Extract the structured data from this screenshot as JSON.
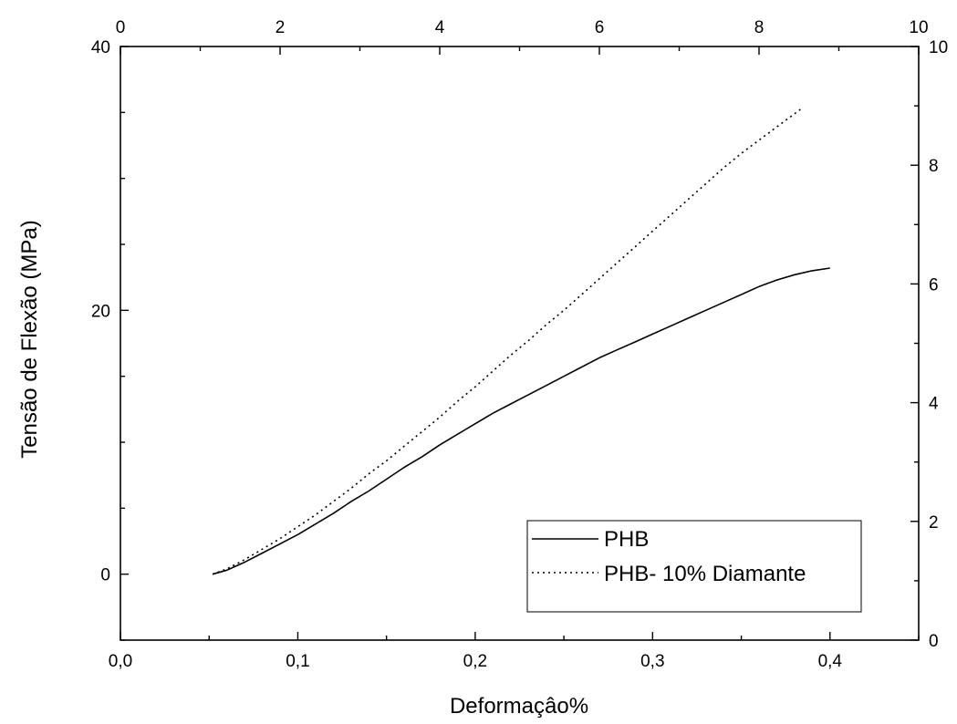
{
  "chart_data": {
    "type": "line",
    "xlabel": "Deformaçâo%",
    "ylabel": "Tensão de Flexão (MPa)",
    "x_ticks": [
      "0,0",
      "0,1",
      "0,2",
      "0,3",
      "0,4"
    ],
    "y_ticks": [
      "0",
      "20",
      "40"
    ],
    "top_ticks": [
      "0",
      "2",
      "4",
      "6",
      "8",
      "10"
    ],
    "right_ticks": [
      "0",
      "2",
      "4",
      "6",
      "8",
      "10"
    ],
    "xlim": [
      0,
      0.45
    ],
    "ylim": [
      -5,
      40
    ],
    "top_xlim": [
      0,
      10
    ],
    "right_ylim": [
      0,
      10
    ],
    "grid": false,
    "legend_position": "bottom-right",
    "series": [
      {
        "name": "PHB",
        "style": "solid",
        "x": [
          0.052,
          0.06,
          0.07,
          0.08,
          0.09,
          0.1,
          0.11,
          0.12,
          0.13,
          0.14,
          0.15,
          0.16,
          0.17,
          0.18,
          0.19,
          0.2,
          0.21,
          0.22,
          0.23,
          0.24,
          0.25,
          0.26,
          0.27,
          0.28,
          0.29,
          0.3,
          0.31,
          0.32,
          0.33,
          0.34,
          0.35,
          0.36,
          0.37,
          0.38,
          0.39,
          0.4
        ],
        "y": [
          0.0,
          0.3,
          0.9,
          1.6,
          2.3,
          3.0,
          3.8,
          4.6,
          5.5,
          6.3,
          7.2,
          8.1,
          8.9,
          9.8,
          10.6,
          11.4,
          12.2,
          12.9,
          13.6,
          14.3,
          15.0,
          15.7,
          16.4,
          17.0,
          17.6,
          18.2,
          18.8,
          19.4,
          20.0,
          20.6,
          21.2,
          21.8,
          22.3,
          22.7,
          23.0,
          23.2
        ]
      },
      {
        "name": "PHB- 10% Diamante",
        "style": "dotted",
        "x": [
          0.052,
          0.06,
          0.07,
          0.08,
          0.09,
          0.1,
          0.11,
          0.12,
          0.13,
          0.14,
          0.15,
          0.16,
          0.17,
          0.18,
          0.19,
          0.2,
          0.21,
          0.22,
          0.23,
          0.24,
          0.25,
          0.26,
          0.27,
          0.28,
          0.29,
          0.3,
          0.31,
          0.32,
          0.33,
          0.34,
          0.35,
          0.36,
          0.37,
          0.38,
          0.385
        ],
        "y": [
          0.0,
          0.4,
          1.1,
          1.9,
          2.7,
          3.6,
          4.5,
          5.5,
          6.5,
          7.6,
          8.6,
          9.7,
          10.8,
          11.9,
          13.1,
          14.2,
          15.4,
          16.6,
          17.7,
          18.9,
          20.0,
          21.2,
          22.4,
          23.6,
          24.8,
          26.0,
          27.2,
          28.4,
          29.6,
          30.8,
          31.9,
          32.9,
          33.9,
          34.9,
          35.4
        ]
      }
    ]
  }
}
